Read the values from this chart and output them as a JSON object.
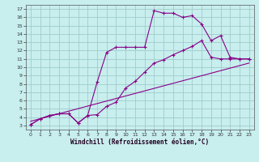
{
  "xlabel": "Windchill (Refroidissement éolien,°C)",
  "bg_color": "#c8eeee",
  "grid_color": "#a0cccc",
  "line_color": "#880088",
  "xlim": [
    -0.5,
    23.5
  ],
  "ylim": [
    2.5,
    17.5
  ],
  "xticks": [
    0,
    1,
    2,
    3,
    4,
    5,
    6,
    7,
    8,
    9,
    10,
    11,
    12,
    13,
    14,
    15,
    16,
    17,
    18,
    19,
    20,
    21,
    22,
    23
  ],
  "yticks": [
    3,
    4,
    5,
    6,
    7,
    8,
    9,
    10,
    11,
    12,
    13,
    14,
    15,
    16,
    17
  ],
  "line1_x": [
    0,
    1,
    2,
    3,
    4,
    5,
    6,
    7,
    8,
    9,
    10,
    11,
    12,
    13,
    14,
    15,
    16,
    17,
    18,
    19,
    20,
    21,
    22,
    23
  ],
  "line1_y": [
    3.1,
    3.8,
    4.2,
    4.4,
    4.4,
    3.3,
    4.2,
    8.2,
    11.8,
    12.4,
    12.4,
    12.4,
    12.4,
    16.8,
    16.5,
    16.5,
    16.0,
    16.2,
    15.2,
    13.2,
    13.8,
    11.2,
    11.0,
    11.0
  ],
  "line2_x": [
    0,
    1,
    2,
    3,
    4,
    5,
    6,
    7,
    8,
    9,
    10,
    11,
    12,
    13,
    14,
    15,
    16,
    17,
    18,
    19,
    20,
    21,
    22,
    23
  ],
  "line2_y": [
    3.1,
    3.8,
    4.2,
    4.4,
    4.4,
    3.3,
    4.2,
    4.3,
    5.3,
    5.8,
    7.5,
    8.3,
    9.4,
    10.5,
    10.9,
    11.5,
    12.0,
    12.5,
    13.2,
    11.2,
    11.0,
    11.0,
    11.0,
    11.0
  ],
  "line3_x": [
    0,
    23
  ],
  "line3_y": [
    3.5,
    10.5
  ]
}
